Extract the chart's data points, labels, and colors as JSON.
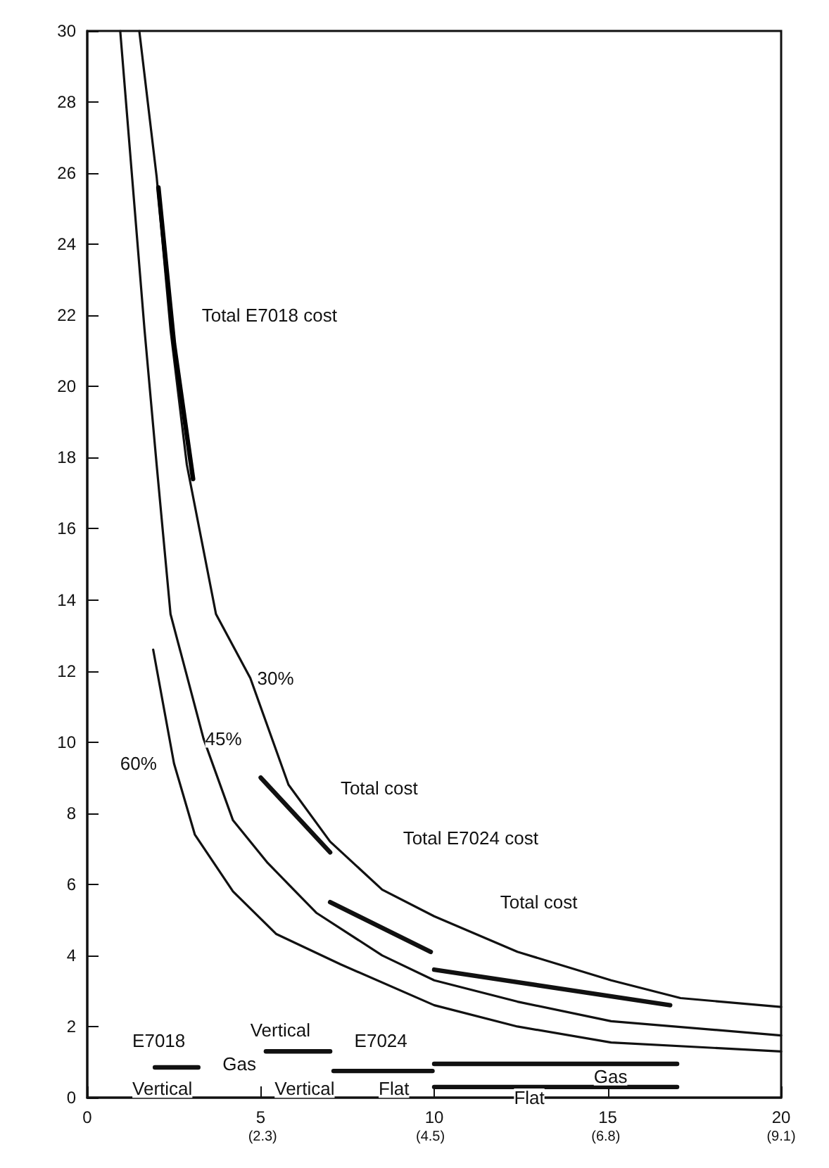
{
  "chart_data": {
    "type": "line",
    "xlim": [
      0,
      20
    ],
    "xticks": [
      0,
      5,
      10,
      15,
      20
    ],
    "x2lim": [
      0,
      9.1
    ],
    "x2ticks": [
      {
        "value": 2.3,
        "label": "(2.3)"
      },
      {
        "value": 4.5,
        "label": "(4.5)"
      },
      {
        "value": 6.8,
        "label": "(6.8)"
      },
      {
        "value": 9.1,
        "label": "(9.1)"
      }
    ],
    "ylim": [
      0,
      30
    ],
    "yticks": [
      0,
      2,
      4,
      6,
      8,
      10,
      12,
      14,
      16,
      18,
      20,
      22,
      24,
      26,
      28,
      30
    ],
    "series": [
      {
        "color": "#111111",
        "x": [
          1.5,
          2.0,
          2.4,
          2.87,
          3.71,
          4.7,
          5.8,
          7.0,
          8.5,
          10,
          12.4,
          15.1,
          17.1,
          20
        ],
        "values": [
          30,
          25.9,
          21.6,
          17.8,
          13.6,
          11.8,
          8.8,
          7.2,
          5.85,
          5.1,
          4.1,
          3.3,
          2.8,
          2.55
        ]
      },
      {
        "color": "#111111",
        "x": [
          0.95,
          1.65,
          2.0,
          2.4,
          3.35,
          4.2,
          5.2,
          6.6,
          8.5,
          10,
          12.4,
          15.1,
          20
        ],
        "values": [
          30,
          21.6,
          17.8,
          13.6,
          10.1,
          7.8,
          6.6,
          5.2,
          4.0,
          3.3,
          2.7,
          2.15,
          1.75
        ]
      },
      {
        "color": "#111111",
        "x": [
          1.9,
          2.5,
          3.1,
          4.2,
          5.45,
          7.3,
          10,
          12.4,
          15.1,
          20
        ],
        "values": [
          12.6,
          9.4,
          7.4,
          5.8,
          4.6,
          3.75,
          2.6,
          2.0,
          1.55,
          1.3
        ]
      },
      {
        "color": "#000000",
        "x": [
          2.05,
          2.5,
          3.05
        ],
        "values": [
          25.6,
          21.2,
          17.4
        ]
      },
      {
        "color": "#111111",
        "x": [
          5.0,
          7.0
        ],
        "values": [
          9.0,
          6.9
        ]
      },
      {
        "color": "#111111",
        "x": [
          7.0,
          9.9
        ],
        "values": [
          5.5,
          4.1
        ]
      },
      {
        "color": "#111111",
        "x": [
          10,
          16.8
        ],
        "values": [
          3.6,
          2.6
        ]
      },
      {
        "color": "#111111",
        "x": [
          1.95,
          3.2
        ],
        "values": [
          0.85,
          0.85
        ]
      },
      {
        "color": "#111111",
        "x": [
          5.15,
          7.0
        ],
        "values": [
          1.3,
          1.3
        ]
      },
      {
        "color": "#111111",
        "x": [
          7.1,
          9.95
        ],
        "values": [
          0.75,
          0.75
        ]
      },
      {
        "color": "#111111",
        "x": [
          10,
          17.0
        ],
        "values": [
          0.95,
          0.95
        ]
      },
      {
        "color": "#111111",
        "x": [
          10,
          17.0
        ],
        "values": [
          0.3,
          0.3
        ]
      }
    ],
    "annotations": [
      "Total E7018 cost",
      "30%",
      "45%",
      "60%",
      "Total cost",
      "Total E7024 cost",
      "Total cost",
      "E7018",
      "Vertical",
      "Vertical",
      "Gas",
      "Vertical",
      "E7024",
      "Flat",
      "Gas",
      "Flat"
    ]
  }
}
